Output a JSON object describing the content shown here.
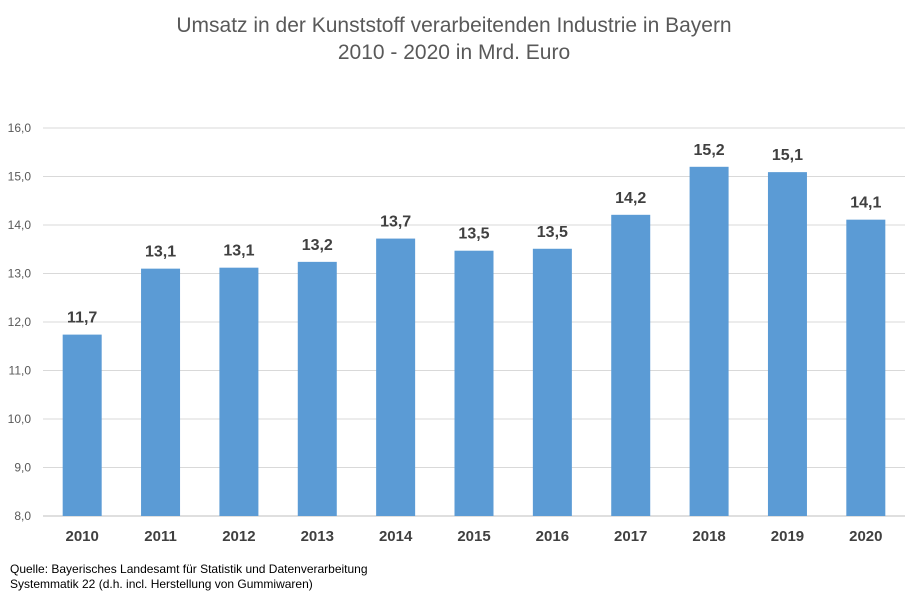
{
  "chart_data": {
    "type": "bar",
    "title": [
      "Umsatz in der Kunststoff verarbeitenden Industrie in Bayern",
      "2010 - 2020 in Mrd. Euro"
    ],
    "categories": [
      "2010",
      "2011",
      "2012",
      "2013",
      "2014",
      "2015",
      "2016",
      "2017",
      "2018",
      "2019",
      "2020"
    ],
    "values": [
      11.74,
      13.1,
      13.12,
      13.24,
      13.72,
      13.47,
      13.51,
      14.21,
      15.2,
      15.09,
      14.11
    ],
    "data_labels": [
      "11,7",
      "13,1",
      "13,1",
      "13,2",
      "13,7",
      "13,5",
      "13,5",
      "14,2",
      "15,2",
      "15,1",
      "14,1"
    ],
    "ylim": [
      8.0,
      16.0
    ],
    "yticks": [
      "8,0",
      "9,0",
      "10,0",
      "11,0",
      "12,0",
      "13,0",
      "14,0",
      "15,0",
      "16,0"
    ],
    "xlabel": "",
    "ylabel": "",
    "grid": true,
    "legend": "none",
    "bar_color": "#5b9bd5",
    "grid_color": "#d9d9d9"
  },
  "source": {
    "line1": "Quelle:  Bayerisches Landesamt für Statistik und Datenverarbeitung",
    "line2": "Systemmatik 22 (d.h. incl. Herstellung von Gummiwaren)"
  }
}
